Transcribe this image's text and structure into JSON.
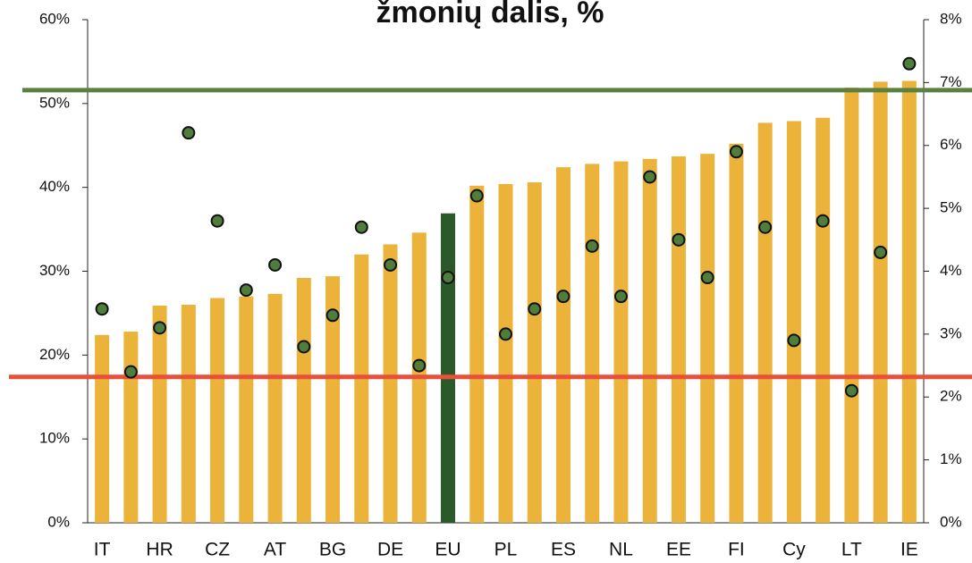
{
  "chart_data": {
    "type": "bar",
    "title": "žmonių dalis, %",
    "categories": [
      "IT",
      null,
      "HR",
      null,
      "CZ",
      null,
      "AT",
      null,
      "BG",
      null,
      "DE",
      null,
      "EU",
      null,
      "PL",
      null,
      "ES",
      null,
      "NL",
      null,
      "EE",
      null,
      "FI",
      null,
      "Cy",
      null,
      "LT",
      null,
      "IE"
    ],
    "series": [
      {
        "type": "bar",
        "color": "#ecb33a",
        "colors": [
          "#ecb33a",
          "#ecb33a",
          "#ecb33a",
          "#ecb33a",
          "#ecb33a",
          "#ecb33a",
          "#ecb33a",
          "#ecb33a",
          "#ecb33a",
          "#ecb33a",
          "#ecb33a",
          "#ecb33a",
          "#2b5a2a",
          "#ecb33a",
          "#ecb33a",
          "#ecb33a",
          "#ecb33a",
          "#ecb33a",
          "#ecb33a",
          "#ecb33a",
          "#ecb33a",
          "#ecb33a",
          "#ecb33a",
          "#ecb33a",
          "#ecb33a",
          "#ecb33a",
          "#ecb33a",
          "#ecb33a",
          "#ecb33a"
        ],
        "values": [
          22.4,
          22.8,
          25.9,
          26.0,
          26.8,
          27.0,
          27.3,
          29.2,
          29.4,
          32.0,
          33.2,
          34.6,
          36.9,
          40.2,
          40.4,
          40.6,
          42.4,
          42.8,
          43.1,
          43.4,
          43.7,
          44.0,
          45.2,
          47.7,
          47.9,
          48.3,
          51.9,
          52.6,
          52.7
        ]
      },
      {
        "type": "scatter",
        "axis": "y2",
        "color": "#4e7d3c",
        "values": [
          3.4,
          2.4,
          3.1,
          6.2,
          4.8,
          3.7,
          4.1,
          2.8,
          3.3,
          4.7,
          4.1,
          2.5,
          3.9,
          5.2,
          3.0,
          3.4,
          3.6,
          4.4,
          3.6,
          5.5,
          4.5,
          3.9,
          5.9,
          4.7,
          2.9,
          4.8,
          2.1,
          4.3,
          7.3
        ]
      }
    ],
    "reference_lines": [
      {
        "value": 51.6,
        "color": "#5b8140"
      },
      {
        "value": 17.4,
        "color": "#e8503a"
      }
    ],
    "ylim": [
      0,
      60
    ],
    "yticks": [
      {
        "value": 0,
        "label": "0%"
      },
      {
        "value": 10,
        "label": "10%"
      },
      {
        "value": 20,
        "label": "20%"
      },
      {
        "value": 30,
        "label": "30%"
      },
      {
        "value": 40,
        "label": "40%"
      },
      {
        "value": 50,
        "label": "50%"
      },
      {
        "value": 60,
        "label": "60%"
      }
    ],
    "y2lim": [
      0,
      8
    ],
    "y2ticks": [
      {
        "value": 0,
        "label": "0%"
      },
      {
        "value": 1,
        "label": "1%"
      },
      {
        "value": 2,
        "label": "2%"
      },
      {
        "value": 3,
        "label": "3%"
      },
      {
        "value": 4,
        "label": "4%"
      },
      {
        "value": 5,
        "label": "5%"
      },
      {
        "value": 6,
        "label": "6%"
      },
      {
        "value": 7,
        "label": "7%"
      },
      {
        "value": 8,
        "label": "8%"
      }
    ]
  }
}
